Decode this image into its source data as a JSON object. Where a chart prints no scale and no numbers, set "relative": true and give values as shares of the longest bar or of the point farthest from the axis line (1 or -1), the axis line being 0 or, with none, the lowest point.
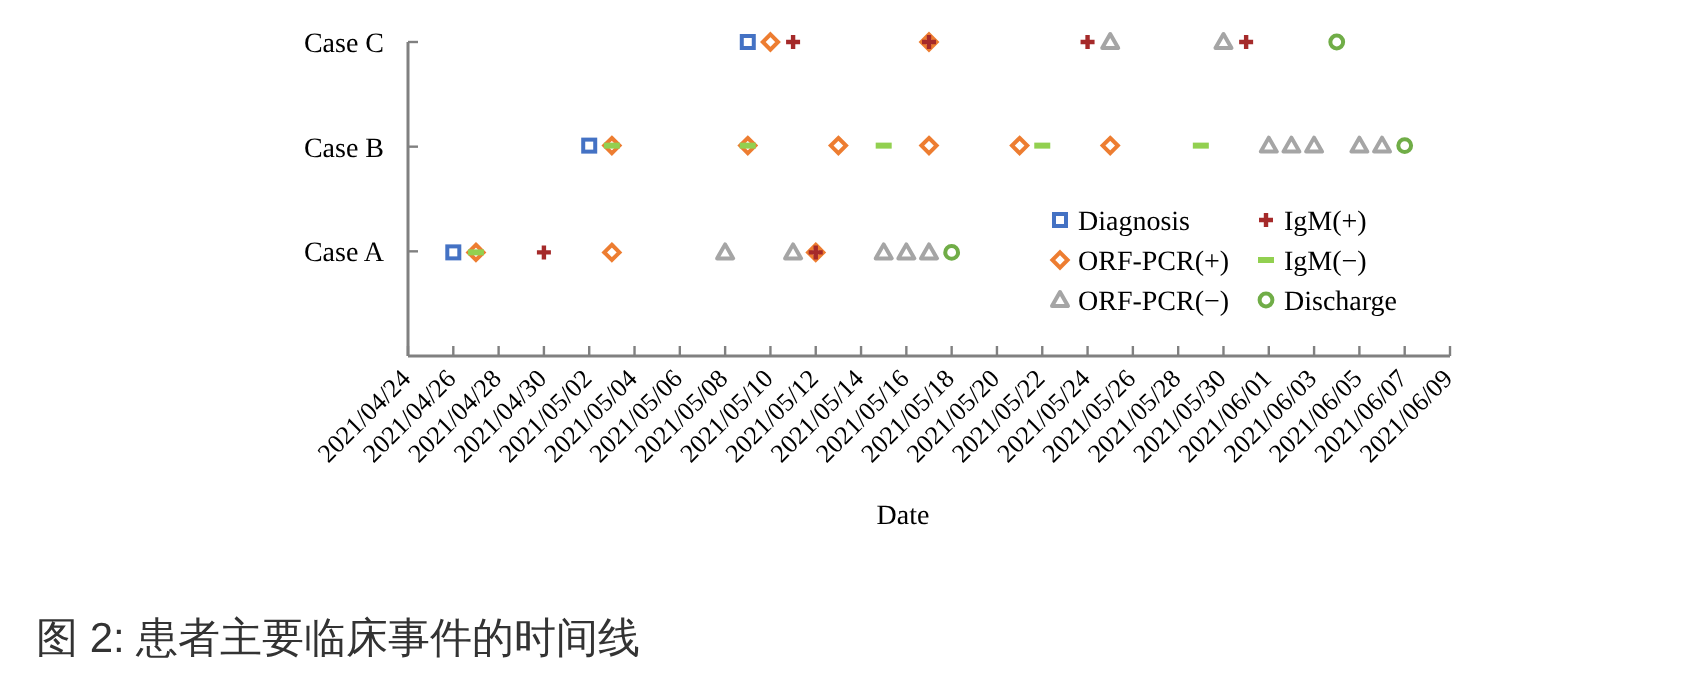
{
  "chart_data": {
    "type": "scatter",
    "relative": true,
    "xlabel": "Date",
    "y_categories": [
      "Case C",
      "Case B",
      "Case A"
    ],
    "xlim": [
      "2021-04-24",
      "2021-06-09"
    ],
    "xticks": [
      {
        "value": "2021-04-24",
        "label": "2021/04/24"
      },
      {
        "value": "2021-04-26",
        "label": "2021/04/26"
      },
      {
        "value": "2021-04-28",
        "label": "2021/04/28"
      },
      {
        "value": "2021-04-30",
        "label": "2021/04/30"
      },
      {
        "value": "2021-05-02",
        "label": "2021/05/02"
      },
      {
        "value": "2021-05-04",
        "label": "2021/05/04"
      },
      {
        "value": "2021-05-06",
        "label": "2021/05/06"
      },
      {
        "value": "2021-05-08",
        "label": "2021/05/08"
      },
      {
        "value": "2021-05-10",
        "label": "2021/05/10"
      },
      {
        "value": "2021-05-12",
        "label": "2021/05/12"
      },
      {
        "value": "2021-05-14",
        "label": "2021/05/14"
      },
      {
        "value": "2021-05-16",
        "label": "2021/05/16"
      },
      {
        "value": "2021-05-18",
        "label": "2021/05/18"
      },
      {
        "value": "2021-05-20",
        "label": "2021/05/20"
      },
      {
        "value": "2021-05-22",
        "label": "2021/05/22"
      },
      {
        "value": "2021-05-24",
        "label": "2021/05/24"
      },
      {
        "value": "2021-05-26",
        "label": "2021/05/26"
      },
      {
        "value": "2021-05-28",
        "label": "2021/05/28"
      },
      {
        "value": "2021-05-30",
        "label": "2021/05/30"
      },
      {
        "value": "2021-06-01",
        "label": "2021/06/01"
      },
      {
        "value": "2021-06-03",
        "label": "2021/06/03"
      },
      {
        "value": "2021-06-05",
        "label": "2021/06/05"
      },
      {
        "value": "2021-06-07",
        "label": "2021/06/07"
      },
      {
        "value": "2021-06-09",
        "label": "2021/06/09"
      }
    ],
    "legend": "bottom right",
    "series": [
      {
        "name": "Diagnosis",
        "color": "#4472c4",
        "marker": "square",
        "x": [
          "2021-04-26",
          "2021-05-02",
          "2021-05-09"
        ],
        "values": [
          0.33,
          0.67,
          1
        ]
      },
      {
        "name": "ORF-PCR(+)",
        "color": "#ed7d31",
        "marker": "diamond",
        "x": [
          "2021-04-27",
          "2021-05-03",
          "2021-05-12",
          "2021-05-03",
          "2021-05-09",
          "2021-05-13",
          "2021-05-17",
          "2021-05-21",
          "2021-05-25",
          "2021-05-10",
          "2021-05-17"
        ],
        "values": [
          0.33,
          0.33,
          0.33,
          0.67,
          0.67,
          0.67,
          0.67,
          0.67,
          0.67,
          1,
          1
        ]
      },
      {
        "name": "ORF-PCR(−)",
        "color": "#a5a5a5",
        "marker": "triangle",
        "x": [
          "2021-05-08",
          "2021-05-11",
          "2021-05-15",
          "2021-05-16",
          "2021-05-17",
          "2021-06-01",
          "2021-06-02",
          "2021-06-03",
          "2021-06-05",
          "2021-06-06",
          "2021-05-25",
          "2021-05-30"
        ],
        "values": [
          0.33,
          0.33,
          0.33,
          0.33,
          0.33,
          0.67,
          0.67,
          0.67,
          0.67,
          0.67,
          1,
          1
        ]
      },
      {
        "name": "IgM(+)",
        "color": "#a52a2a",
        "marker": "cross",
        "x": [
          "2021-04-30",
          "2021-05-12",
          "2021-05-11",
          "2021-05-17",
          "2021-05-24",
          "2021-05-31"
        ],
        "values": [
          0.33,
          0.33,
          1,
          1,
          1,
          1
        ]
      },
      {
        "name": "IgM(−)",
        "color": "#92d050",
        "x": [
          "2021-04-27",
          "2021-05-03",
          "2021-05-09",
          "2021-05-15",
          "2021-05-22",
          "2021-05-29"
        ],
        "values": [
          0.33,
          0.67,
          0.67,
          0.67,
          0.67,
          0.67
        ]
      },
      {
        "name": "Discharge",
        "color": "#70ad47",
        "marker": "circle",
        "x": [
          "2021-05-18",
          "2021-06-07",
          "2021-06-04"
        ],
        "values": [
          0.33,
          0.67,
          1
        ]
      }
    ],
    "annotations": [
      "图 2:  患者主要临床事件的时间线"
    ]
  }
}
